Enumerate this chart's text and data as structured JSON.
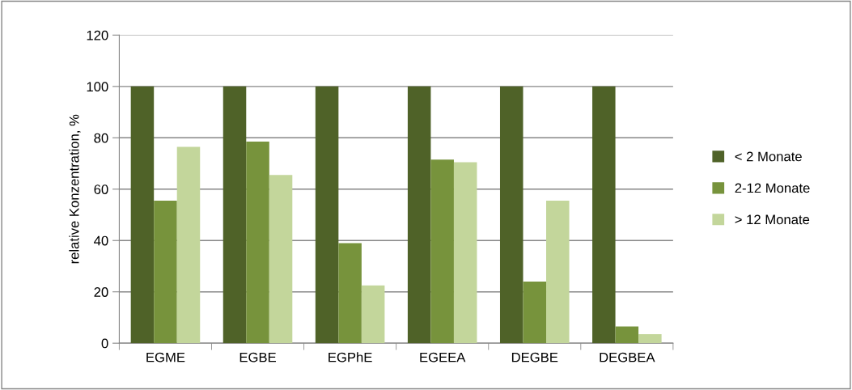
{
  "chart_data": {
    "type": "bar",
    "ylabel": "relative Konzentration, %",
    "categories": [
      "EGME",
      "EGBE",
      "EGPhE",
      "EGEEA",
      "DEGBE",
      "DEGBEA"
    ],
    "series": [
      {
        "name": "< 2 Monate",
        "color": "#4f6228",
        "values": [
          100,
          100,
          100,
          100,
          100,
          100
        ]
      },
      {
        "name": "2-12 Monate",
        "color": "#77933c",
        "values": [
          55.5,
          78.5,
          39,
          71.5,
          24,
          6.5
        ]
      },
      {
        "name": "> 12 Monate",
        "color": "#c3d69b",
        "values": [
          76.5,
          65.5,
          22.5,
          70.5,
          55.5,
          3.5
        ]
      }
    ],
    "ylim": [
      0,
      120
    ],
    "yticks": [
      0,
      20,
      40,
      60,
      80,
      100,
      120
    ],
    "grid": "y",
    "legend": "right"
  }
}
